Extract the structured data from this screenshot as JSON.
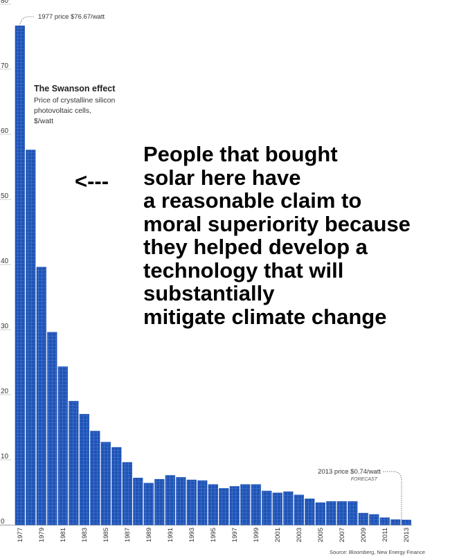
{
  "chart_data": {
    "type": "bar",
    "title": "The Swanson effect",
    "subtitle": [
      "Price of crystalline silicon",
      "photovoltaic cells,",
      "$/watt"
    ],
    "ylim": [
      0,
      80
    ],
    "yticks": [
      0,
      10,
      20,
      30,
      40,
      50,
      60,
      70,
      80
    ],
    "grid": true,
    "categories": [
      "1977",
      "1978",
      "1979",
      "1980",
      "1981",
      "1982",
      "1983",
      "1984",
      "1985",
      "1986",
      "1987",
      "1988",
      "1989",
      "1990",
      "1991",
      "1992",
      "1993",
      "1994",
      "1995",
      "1996",
      "1997",
      "1998",
      "1999",
      "2000",
      "2001",
      "2002",
      "2003",
      "2004",
      "2005",
      "2006",
      "2007",
      "2008",
      "2009",
      "2010",
      "2011",
      "2012",
      "2013"
    ],
    "xtick_labels": [
      "1977",
      "1979",
      "1981",
      "1983",
      "1985",
      "1987",
      "1989",
      "1991",
      "1993",
      "1995",
      "1997",
      "1999",
      "2001",
      "2003",
      "2005",
      "2007",
      "2009",
      "2011",
      "2013"
    ],
    "values": [
      76.67,
      57.6,
      39.6,
      29.6,
      24.3,
      19.0,
      17.0,
      14.4,
      12.7,
      11.9,
      9.6,
      7.2,
      6.4,
      7.0,
      7.6,
      7.3,
      6.9,
      6.8,
      6.2,
      5.6,
      5.9,
      6.2,
      6.2,
      5.2,
      4.9,
      5.1,
      4.6,
      4.0,
      3.4,
      3.6,
      3.6,
      3.6,
      1.8,
      1.6,
      1.1,
      0.8,
      0.74
    ],
    "annotations": [
      {
        "category": "1977",
        "text": "1977 price $76.67/watt"
      },
      {
        "category": "2013",
        "text": "2013 price $0.74/watt",
        "subtext": "FORECAST"
      }
    ],
    "source": "Source: Bloomberg, New Energy Finance",
    "bar_color": "#1f53b4"
  },
  "overlay": {
    "arrow": "<---",
    "lines": [
      "People that bought",
      "solar here have",
      "a reasonable claim to",
      "moral superiority because",
      "they helped develop a",
      "technology that will",
      "substantially",
      "mitigate climate change"
    ]
  }
}
